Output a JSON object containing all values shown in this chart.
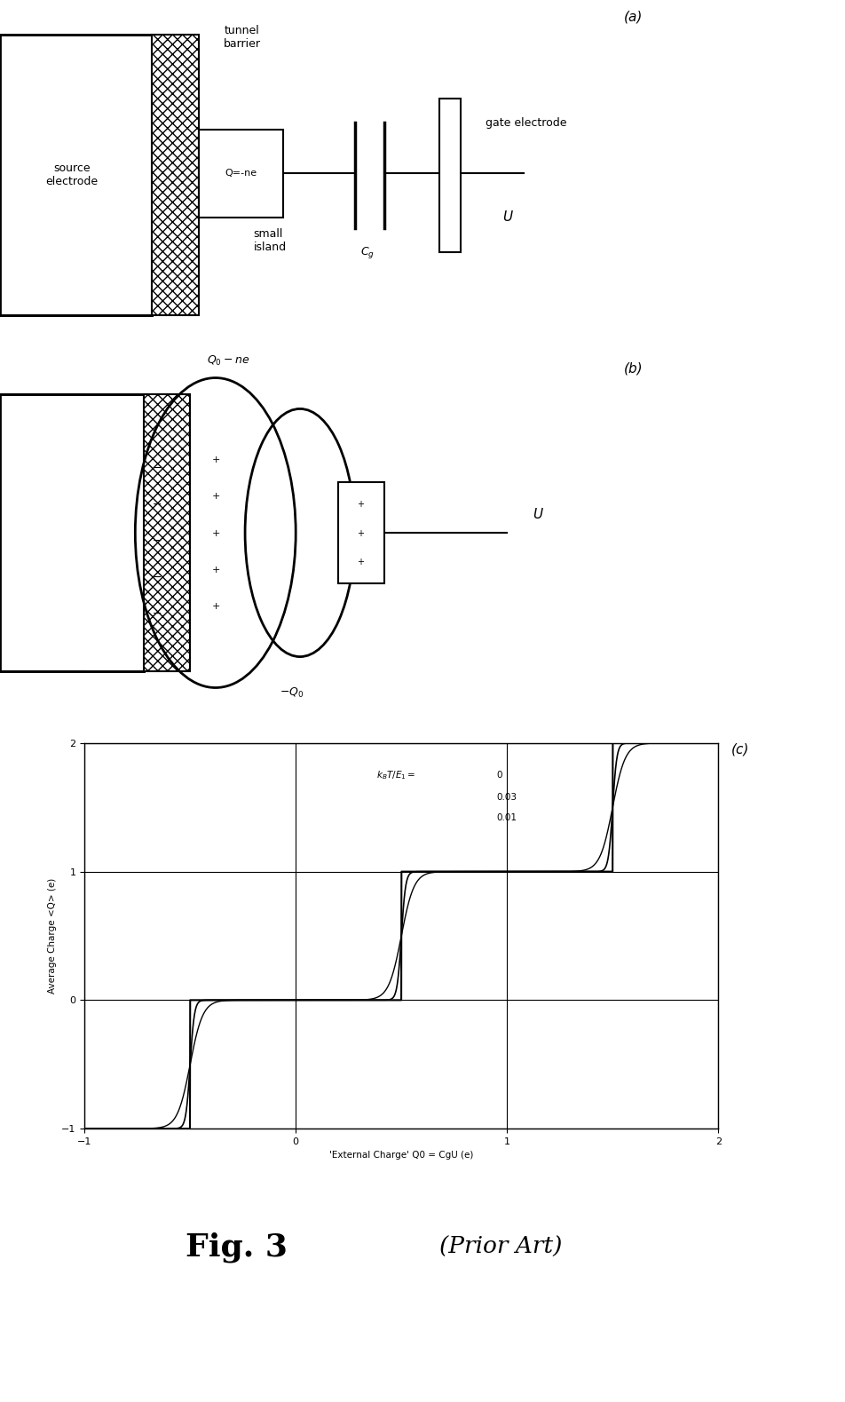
{
  "fig_width": 9.52,
  "fig_height": 15.79,
  "bg_color": "#ffffff",
  "panel_a_label": "(a)",
  "panel_b_label": "(b)",
  "panel_c_label": "(c)",
  "fig_caption": "Fig. 3",
  "fig_caption2": "(Prior Art)",
  "source_electrode_text": "source\nelectrode",
  "tunnel_barrier_text": "tunnel\nbarrier",
  "small_island_text": "small\nisland",
  "gate_electrode_text": "gate electrode",
  "Q_ne_text": "Q=-ne",
  "C_g_text": "C_g",
  "U_text_a": "U",
  "Q0_ne_text": "Q0 - ne",
  "neg_Q0_text": "-Q0",
  "U_text_b": "U",
  "xlabel": "'External Charge' Q0 = CgU (e)",
  "ylabel": "Average Charge <Q> (e)",
  "xlim": [
    -1,
    2
  ],
  "ylim": [
    -1,
    2
  ],
  "xticks": [
    -1,
    0,
    1,
    2
  ],
  "yticks": [
    -1,
    0,
    1,
    2
  ]
}
